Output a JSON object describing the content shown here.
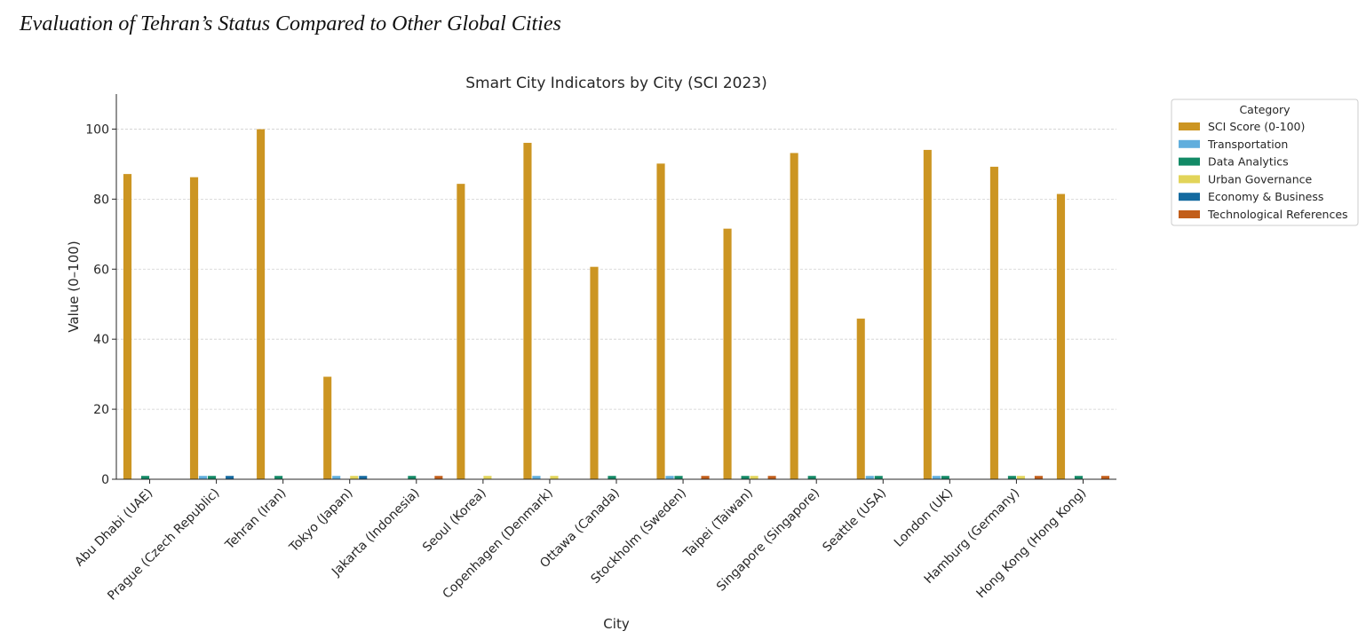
{
  "page": {
    "heading": "Evaluation of Tehran’s Status Compared to Other Global Cities"
  },
  "chart_data": {
    "type": "bar",
    "title": "Smart City Indicators by City (SCI 2023)",
    "xlabel": "City",
    "ylabel": "Value (0–100)",
    "ylim": [
      0,
      110
    ],
    "yticks": [
      0,
      20,
      40,
      60,
      80,
      100
    ],
    "grid": true,
    "legend_title": "Category",
    "legend_position": "top-right outside",
    "categories": [
      "Abu Dhabi (UAE)",
      "Prague (Czech Republic)",
      "Tehran (Iran)",
      "Tokyo (Japan)",
      "Jakarta (Indonesia)",
      "Seoul (Korea)",
      "Copenhagen (Denmark)",
      "Ottawa (Canada)",
      "Stockholm (Sweden)",
      "Taipei (Taiwan)",
      "Singapore (Singapore)",
      "Seattle (USA)",
      "London (UK)",
      "Hamburg (Germany)",
      "Hong Kong (Hong Kong)"
    ],
    "series": [
      {
        "name": "SCI Score (0-100)",
        "color": "#CC9522",
        "values": [
          87.2,
          86.3,
          100,
          29.3,
          0,
          84.4,
          96.1,
          60.7,
          90.2,
          71.6,
          93.2,
          45.9,
          94.1,
          89.3,
          81.5
        ]
      },
      {
        "name": "Transportation",
        "color": "#60AEDD",
        "values": [
          0,
          1,
          0,
          1,
          0,
          0,
          1,
          0,
          1,
          0,
          0,
          1,
          1,
          0,
          0
        ]
      },
      {
        "name": "Data Analytics",
        "color": "#128A66",
        "values": [
          1,
          1,
          1,
          0,
          1,
          0,
          0,
          1,
          1,
          1,
          1,
          1,
          1,
          1,
          1
        ]
      },
      {
        "name": "Urban Governance",
        "color": "#E2D459",
        "values": [
          0,
          0,
          0,
          1,
          0,
          1,
          1,
          0,
          0,
          1,
          0,
          0,
          0,
          1,
          0
        ]
      },
      {
        "name": "Economy & Business",
        "color": "#146AA0",
        "values": [
          0,
          1,
          0,
          1,
          0,
          0,
          0,
          0,
          0,
          0,
          0,
          0,
          0,
          0,
          0
        ]
      },
      {
        "name": "Technological References",
        "color": "#C25E1A",
        "values": [
          0,
          0,
          0,
          0,
          1,
          0,
          0,
          0,
          1,
          1,
          0,
          0,
          0,
          1,
          1
        ]
      }
    ]
  }
}
